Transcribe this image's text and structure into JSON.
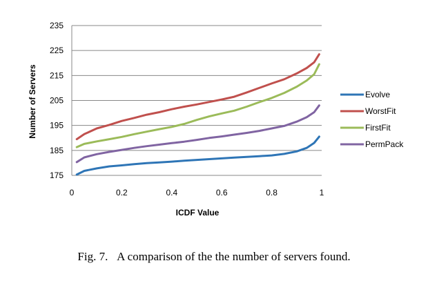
{
  "chart_data": {
    "type": "line",
    "xlabel": "ICDF Value",
    "ylabel": "Number of Servers",
    "xlim": [
      0,
      1
    ],
    "ylim": [
      175,
      235
    ],
    "xticks": [
      "0",
      "0.2",
      "0.4",
      "0.6",
      "0.8",
      "1"
    ],
    "yticks": [
      "175",
      "185",
      "195",
      "205",
      "215",
      "225",
      "235"
    ],
    "grid": "horizontal",
    "legend": "right",
    "x": [
      0.02,
      0.05,
      0.1,
      0.15,
      0.2,
      0.25,
      0.3,
      0.35,
      0.4,
      0.45,
      0.5,
      0.55,
      0.6,
      0.65,
      0.7,
      0.75,
      0.8,
      0.85,
      0.9,
      0.94,
      0.97,
      0.99
    ],
    "series": [
      {
        "name": "Evolve",
        "color": "#2e75b6",
        "values": [
          175.3,
          176.8,
          177.8,
          178.6,
          179.0,
          179.5,
          179.9,
          180.2,
          180.5,
          180.9,
          181.2,
          181.5,
          181.8,
          182.1,
          182.4,
          182.7,
          183.0,
          183.6,
          184.6,
          186.0,
          188.0,
          190.5
        ]
      },
      {
        "name": "WorstFit",
        "color": "#c0504d",
        "values": [
          189.5,
          191.5,
          193.8,
          195.2,
          196.8,
          198.0,
          199.3,
          200.3,
          201.5,
          202.5,
          203.4,
          204.4,
          205.4,
          206.5,
          208.2,
          210.0,
          211.8,
          213.5,
          215.8,
          218.0,
          220.3,
          223.5
        ]
      },
      {
        "name": "FirstFit",
        "color": "#9bbb59",
        "values": [
          186.3,
          187.6,
          188.6,
          189.5,
          190.4,
          191.5,
          192.5,
          193.5,
          194.4,
          195.6,
          197.2,
          198.6,
          199.8,
          200.9,
          202.5,
          204.3,
          206.0,
          208.0,
          210.5,
          213.0,
          215.5,
          219.5
        ]
      },
      {
        "name": "PermPack",
        "color": "#8064a2",
        "values": [
          180.3,
          182.2,
          183.5,
          184.4,
          185.2,
          186.0,
          186.7,
          187.3,
          187.9,
          188.5,
          189.2,
          190.0,
          190.6,
          191.3,
          192.0,
          192.8,
          193.8,
          194.8,
          196.5,
          198.3,
          200.3,
          203.0
        ]
      }
    ]
  },
  "caption": {
    "label": "Fig. 7.",
    "text": "A comparison of the the number of servers found."
  }
}
